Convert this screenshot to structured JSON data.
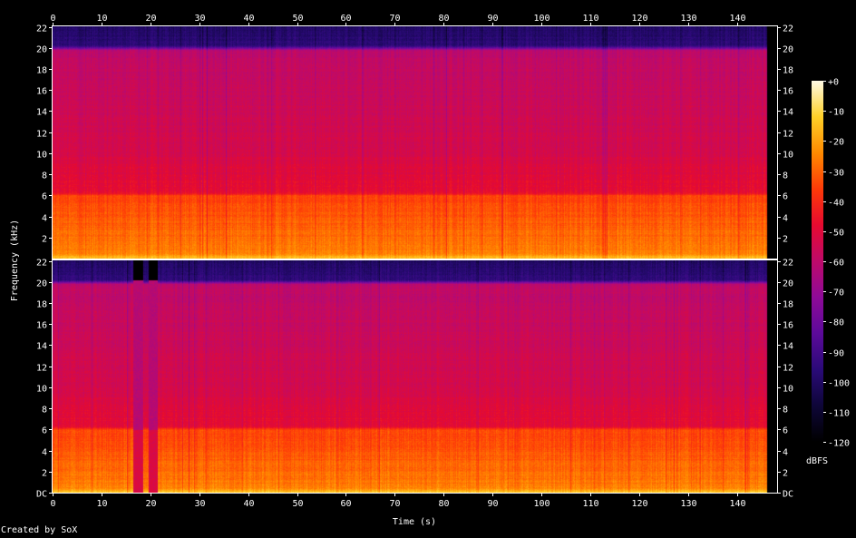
{
  "credit": "Created by SoX",
  "chart_data": {
    "type": "heatmap",
    "xlabel": "Time (s)",
    "ylabel": "Frequency (kHz)",
    "x_ticks": [
      0,
      10,
      20,
      30,
      40,
      50,
      60,
      70,
      80,
      90,
      100,
      110,
      120,
      130,
      140
    ],
    "xlim": [
      0,
      148.2
    ],
    "ylim_khz": [
      0,
      22.05
    ],
    "y_ticks": [
      {
        "value": 0,
        "label": "DC"
      },
      {
        "value": 2,
        "label": "2"
      },
      {
        "value": 4,
        "label": "4"
      },
      {
        "value": 6,
        "label": "6"
      },
      {
        "value": 8,
        "label": "8"
      },
      {
        "value": 10,
        "label": "10"
      },
      {
        "value": 12,
        "label": "12"
      },
      {
        "value": 14,
        "label": "14"
      },
      {
        "value": 16,
        "label": "16"
      },
      {
        "value": 18,
        "label": "18"
      },
      {
        "value": 20,
        "label": "20"
      },
      {
        "value": 22,
        "label": "22"
      }
    ],
    "colorbar": {
      "label": "dBFS",
      "range": [
        -120,
        0
      ],
      "ticks": [
        {
          "value": 0,
          "label": "+0"
        },
        {
          "value": -10,
          "label": "-10"
        },
        {
          "value": -20,
          "label": "-20"
        },
        {
          "value": -30,
          "label": "-30"
        },
        {
          "value": -40,
          "label": "-40"
        },
        {
          "value": -50,
          "label": "-50"
        },
        {
          "value": -60,
          "label": "-60"
        },
        {
          "value": -70,
          "label": "-70"
        },
        {
          "value": -80,
          "label": "-80"
        },
        {
          "value": -90,
          "label": "-90"
        },
        {
          "value": -100,
          "label": "-100"
        },
        {
          "value": -110,
          "label": "-110"
        },
        {
          "value": -120,
          "label": "-120"
        }
      ]
    },
    "audio_end_s": 146,
    "channels": [
      {
        "name": "",
        "level_profile_dbfs": [
          {
            "khz": 0.0,
            "db": -12
          },
          {
            "khz": 0.5,
            "db": -25
          },
          {
            "khz": 3.0,
            "db": -30
          },
          {
            "khz": 6.0,
            "db": -35
          },
          {
            "khz": 6.3,
            "db": -48
          },
          {
            "khz": 10.0,
            "db": -53
          },
          {
            "khz": 16.0,
            "db": -57
          },
          {
            "khz": 19.8,
            "db": -60
          },
          {
            "khz": 20.2,
            "db": -95
          },
          {
            "khz": 22.05,
            "db": -100
          }
        ],
        "quiet_segments_s": []
      },
      {
        "name": "",
        "level_profile_dbfs": [
          {
            "khz": 0.0,
            "db": -12
          },
          {
            "khz": 0.5,
            "db": -25
          },
          {
            "khz": 3.0,
            "db": -30
          },
          {
            "khz": 6.0,
            "db": -35
          },
          {
            "khz": 6.3,
            "db": -48
          },
          {
            "khz": 10.0,
            "db": -53
          },
          {
            "khz": 16.0,
            "db": -57
          },
          {
            "khz": 19.8,
            "db": -60
          },
          {
            "khz": 20.2,
            "db": -95
          },
          {
            "khz": 22.05,
            "db": -100
          }
        ],
        "quiet_segments_s": [
          [
            16.5,
            18.5
          ],
          [
            19.5,
            21.5
          ]
        ]
      }
    ]
  }
}
